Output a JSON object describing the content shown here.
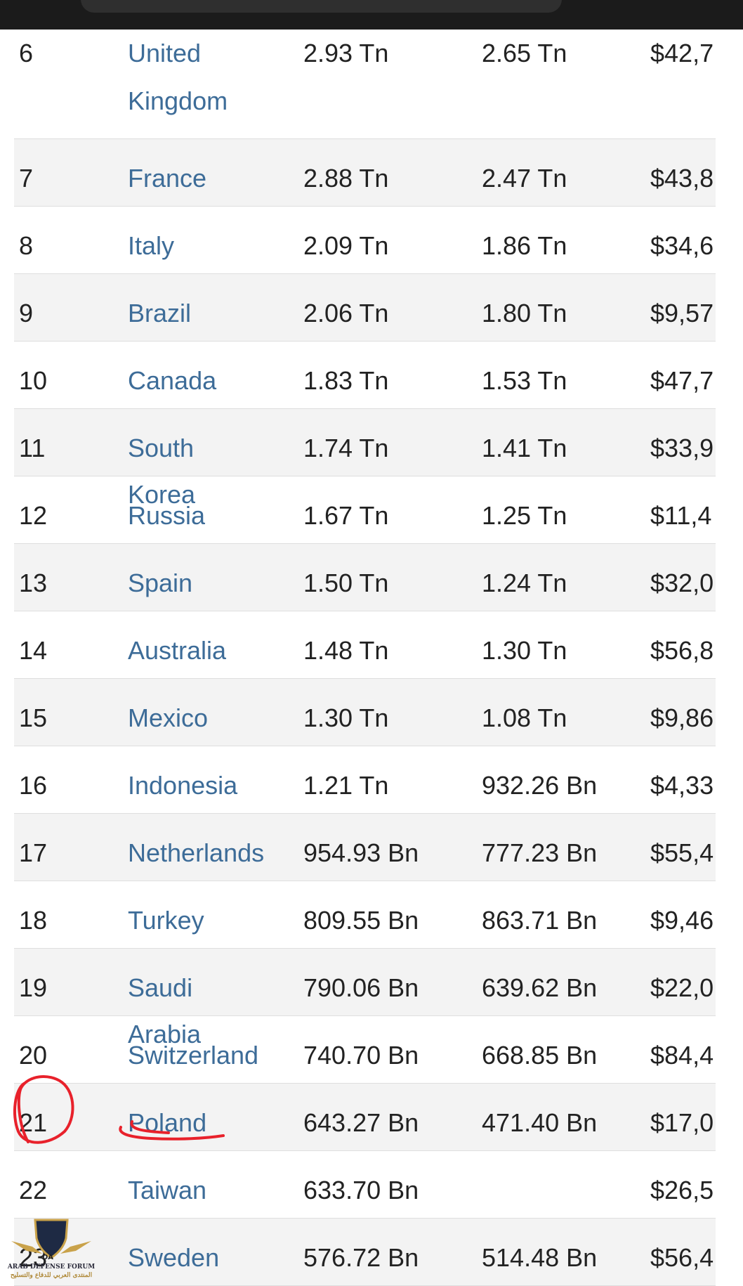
{
  "rows": [
    {
      "rank": "6",
      "country": "United Kingdom",
      "gdp_a": "2.93 Tn",
      "gdp_b": "2.65 Tn",
      "per_capita": "$42,7"
    },
    {
      "rank": "7",
      "country": "France",
      "gdp_a": "2.88 Tn",
      "gdp_b": "2.47 Tn",
      "per_capita": "$43,8"
    },
    {
      "rank": "8",
      "country": "Italy",
      "gdp_a": "2.09 Tn",
      "gdp_b": "1.86 Tn",
      "per_capita": "$34,6"
    },
    {
      "rank": "9",
      "country": "Brazil",
      "gdp_a": "2.06 Tn",
      "gdp_b": "1.80 Tn",
      "per_capita": "$9,57"
    },
    {
      "rank": "10",
      "country": "Canada",
      "gdp_a": "1.83 Tn",
      "gdp_b": "1.53 Tn",
      "per_capita": "$47,7"
    },
    {
      "rank": "11",
      "country": "South Korea",
      "gdp_a": "1.74 Tn",
      "gdp_b": "1.41 Tn",
      "per_capita": "$33,9"
    },
    {
      "rank": "12",
      "country": "Russia",
      "gdp_a": "1.67 Tn",
      "gdp_b": "1.25 Tn",
      "per_capita": "$11,4"
    },
    {
      "rank": "13",
      "country": "Spain",
      "gdp_a": "1.50 Tn",
      "gdp_b": "1.24 Tn",
      "per_capita": "$32,0"
    },
    {
      "rank": "14",
      "country": "Australia",
      "gdp_a": "1.48 Tn",
      "gdp_b": "1.30 Tn",
      "per_capita": "$56,8"
    },
    {
      "rank": "15",
      "country": "Mexico",
      "gdp_a": "1.30 Tn",
      "gdp_b": "1.08 Tn",
      "per_capita": "$9,86"
    },
    {
      "rank": "16",
      "country": "Indonesia",
      "gdp_a": "1.21 Tn",
      "gdp_b": "932.26 Bn",
      "per_capita": "$4,33"
    },
    {
      "rank": "17",
      "country": "Netherlands",
      "gdp_a": "954.93 Bn",
      "gdp_b": "777.23 Bn",
      "per_capita": "$55,4"
    },
    {
      "rank": "18",
      "country": "Turkey",
      "gdp_a": "809.55 Bn",
      "gdp_b": "863.71 Bn",
      "per_capita": "$9,46"
    },
    {
      "rank": "19",
      "country": "Saudi Arabia",
      "gdp_a": "790.06 Bn",
      "gdp_b": "639.62 Bn",
      "per_capita": "$22,0"
    },
    {
      "rank": "20",
      "country": "Switzerland",
      "gdp_a": "740.70 Bn",
      "gdp_b": "668.85 Bn",
      "per_capita": "$84,4"
    },
    {
      "rank": "21",
      "country": "Poland",
      "gdp_a": "643.27 Bn",
      "gdp_b": "471.40 Bn",
      "per_capita": "$17,0"
    },
    {
      "rank": "22",
      "country": "Taiwan",
      "gdp_a": "633.70 Bn",
      "gdp_b": "",
      "per_capita": "$26,5"
    },
    {
      "rank": "23",
      "country": "Sweden",
      "gdp_a": "576.72 Bn",
      "gdp_b": "514.48 Bn",
      "per_capita": "$56,4"
    }
  ],
  "watermark": {
    "abbr": "DA",
    "name": "ARAB DEFENSE FORUM",
    "subtitle": "المنتدى العربي للدفاع والتسليح"
  },
  "colors": {
    "link": "#3d6c98",
    "annotation": "#e8212b",
    "row_shade": "#f3f3f3"
  }
}
